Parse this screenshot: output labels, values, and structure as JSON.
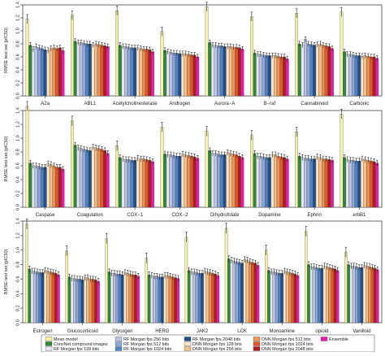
{
  "models": [
    {
      "name": "Mean model",
      "color": "#f3f0a8"
    },
    {
      "name": "ConvNet compound images",
      "color": "#2e8b3a"
    },
    {
      "name": "RF Morgan fps 128 bits",
      "color": "#e6e6f2"
    },
    {
      "name": "RF Morgan fps 256 bits",
      "color": "#bcc4e3"
    },
    {
      "name": "RF Morgan fps 512 bits",
      "color": "#8ea8d8"
    },
    {
      "name": "RF Morgan fps 1024 bits",
      "color": "#4f83c4"
    },
    {
      "name": "RF Morgan fps 2048 bits",
      "color": "#1f4f8f"
    },
    {
      "name": "DNN Morgan fps 128 bits",
      "color": "#fbe3c3"
    },
    {
      "name": "DNN Morgan fps 256 bits",
      "color": "#f7c089"
    },
    {
      "name": "DNN Morgan fps 512 bits",
      "color": "#ee9452"
    },
    {
      "name": "DNN Morgan fps 1024 bits",
      "color": "#e0582a"
    },
    {
      "name": "DNN Morgan fps 2048 bits",
      "color": "#b31a1a"
    },
    {
      "name": "Ensemble",
      "color": "#e81ab0"
    }
  ],
  "chart_data": [
    {
      "type": "bar",
      "ylabel": "RMSE test set (pIC50)",
      "ylim": [
        0,
        1.4
      ],
      "yticks": [
        0,
        0.2,
        0.4,
        0.6,
        0.8,
        1.0,
        1.2,
        1.4
      ],
      "grid": false,
      "categories": [
        "A2a",
        "ABL1",
        "Acetylcholinesterase",
        "Androgen",
        "Aurora−A",
        "B−raf",
        "Cannabinoid",
        "Carbonic"
      ],
      "values": [
        [
          1.18,
          0.78,
          0.72,
          0.76,
          0.74,
          0.73,
          0.71,
          0.7,
          0.73,
          0.74,
          0.73,
          0.74,
          0.7
        ],
        [
          1.24,
          0.84,
          0.82,
          0.82,
          0.81,
          0.8,
          0.8,
          0.78,
          0.8,
          0.79,
          0.78,
          0.77,
          0.76
        ],
        [
          1.31,
          0.78,
          0.76,
          0.76,
          0.75,
          0.74,
          0.74,
          0.74,
          0.73,
          0.72,
          0.72,
          0.71,
          0.68
        ],
        [
          0.99,
          0.7,
          0.68,
          0.67,
          0.66,
          0.66,
          0.65,
          0.65,
          0.65,
          0.64,
          0.63,
          0.63,
          0.6
        ],
        [
          1.37,
          0.82,
          0.78,
          0.78,
          0.77,
          0.77,
          0.76,
          0.76,
          0.76,
          0.75,
          0.75,
          0.74,
          0.72
        ],
        [
          1.22,
          0.66,
          0.64,
          0.64,
          0.63,
          0.62,
          0.62,
          0.62,
          0.62,
          0.61,
          0.6,
          0.6,
          0.57
        ],
        [
          1.27,
          0.8,
          0.78,
          0.87,
          0.8,
          0.79,
          0.78,
          0.79,
          0.8,
          0.78,
          0.77,
          0.76,
          0.73
        ],
        [
          1.29,
          0.68,
          0.64,
          0.64,
          0.63,
          0.62,
          0.62,
          0.61,
          0.62,
          0.61,
          0.6,
          0.6,
          0.58
        ]
      ]
    },
    {
      "type": "bar",
      "ylabel": "RMSE test set (pIC50)",
      "ylim": [
        0,
        1.4
      ],
      "yticks": [
        0,
        0.2,
        0.4,
        0.6,
        0.8,
        1.0,
        1.2,
        1.4
      ],
      "grid": false,
      "categories": [
        "Caspase",
        "Coagulation",
        "COX−1",
        "COX−2",
        "Dihydrofolate",
        "Dopamine",
        "Ephrin",
        "erbB1"
      ],
      "values": [
        [
          1.46,
          0.64,
          0.6,
          0.6,
          0.59,
          0.58,
          0.58,
          0.63,
          0.62,
          0.6,
          0.58,
          0.58,
          0.55
        ],
        [
          1.25,
          0.9,
          0.86,
          0.85,
          0.84,
          0.83,
          0.82,
          0.87,
          0.86,
          0.85,
          0.84,
          0.82,
          0.78
        ],
        [
          0.89,
          0.72,
          0.7,
          0.69,
          0.69,
          0.68,
          0.68,
          0.71,
          0.7,
          0.7,
          0.69,
          0.68,
          0.66
        ],
        [
          1.16,
          0.77,
          0.76,
          0.76,
          0.75,
          0.74,
          0.74,
          0.77,
          0.76,
          0.75,
          0.74,
          0.73,
          0.71
        ],
        [
          1.1,
          0.82,
          0.78,
          0.78,
          0.77,
          0.76,
          0.76,
          0.79,
          0.78,
          0.77,
          0.76,
          0.74,
          0.72
        ],
        [
          1.04,
          0.78,
          0.74,
          0.74,
          0.73,
          0.72,
          0.72,
          0.76,
          0.76,
          0.74,
          0.73,
          0.72,
          0.7
        ],
        [
          1.09,
          0.74,
          0.72,
          0.71,
          0.71,
          0.7,
          0.7,
          0.73,
          0.72,
          0.7,
          0.7,
          0.69,
          0.68
        ],
        [
          1.35,
          0.72,
          0.69,
          0.68,
          0.68,
          0.67,
          0.67,
          0.7,
          0.69,
          0.68,
          0.67,
          0.66,
          0.64
        ]
      ]
    },
    {
      "type": "bar",
      "ylabel": "RMSE test set (pIC50)",
      "ylim": [
        0,
        1.4
      ],
      "yticks": [
        0,
        0.2,
        0.4,
        0.6,
        0.8,
        1.0,
        1.2,
        1.4
      ],
      "grid": false,
      "categories": [
        "Estrogen",
        "Glucocorticoid",
        "Glycogen",
        "HERG",
        "JAK2",
        "LCK",
        "Monoamine",
        "opioid",
        "Vanilloid"
      ],
      "values": [
        [
          1.36,
          0.74,
          0.71,
          0.71,
          0.7,
          0.69,
          0.69,
          0.72,
          0.71,
          0.7,
          0.69,
          0.68,
          0.66
        ],
        [
          0.99,
          0.63,
          0.61,
          0.61,
          0.6,
          0.6,
          0.59,
          0.62,
          0.62,
          0.6,
          0.6,
          0.59,
          0.57
        ],
        [
          1.16,
          0.7,
          0.68,
          0.68,
          0.67,
          0.67,
          0.66,
          0.69,
          0.68,
          0.67,
          0.66,
          0.66,
          0.64
        ],
        [
          0.89,
          0.66,
          0.65,
          0.64,
          0.64,
          0.63,
          0.63,
          0.65,
          0.65,
          0.64,
          0.63,
          0.62,
          0.61
        ],
        [
          1.18,
          0.72,
          0.7,
          0.7,
          0.69,
          0.68,
          0.68,
          0.71,
          0.7,
          0.69,
          0.68,
          0.67,
          0.65
        ],
        [
          1.3,
          0.88,
          0.86,
          0.85,
          0.84,
          0.83,
          0.82,
          0.87,
          0.86,
          0.84,
          0.83,
          0.82,
          0.79
        ],
        [
          1.0,
          0.72,
          0.7,
          0.7,
          0.69,
          0.68,
          0.68,
          0.71,
          0.7,
          0.69,
          0.68,
          0.67,
          0.65
        ],
        [
          1.26,
          0.8,
          0.77,
          0.77,
          0.76,
          0.75,
          0.75,
          0.78,
          0.77,
          0.76,
          0.75,
          0.74,
          0.72
        ],
        [
          0.97,
          0.8,
          0.78,
          0.78,
          0.77,
          0.76,
          0.76,
          0.79,
          0.78,
          0.77,
          0.76,
          0.75,
          0.73
        ]
      ]
    }
  ]
}
